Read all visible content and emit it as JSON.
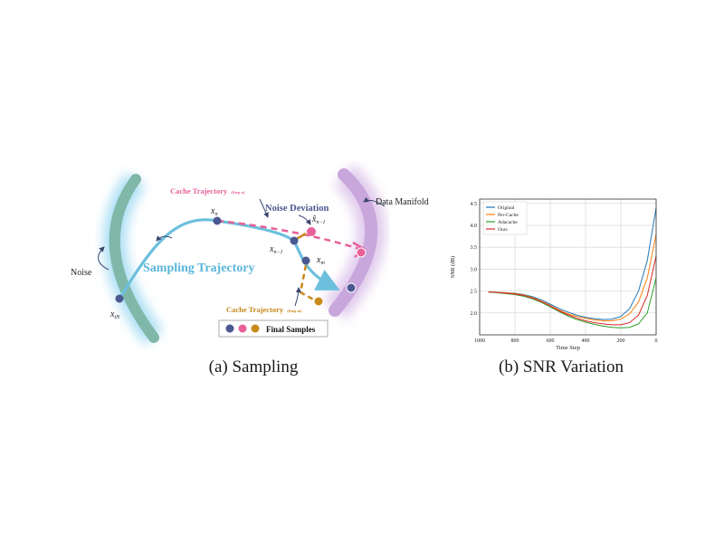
{
  "panel_a": {
    "caption": "(a) Sampling",
    "labels": {
      "noise": "Noise",
      "data_manifold": "Data Manifold",
      "sampling_trajectory": "Sampling Trajectory",
      "noise_deviation": "Noise Deviation",
      "cache_trajectory_top": "Cache Trajectory",
      "cache_trajectory_top_note": "(Step n)",
      "cache_trajectory_bottom": "Cache Trajectory",
      "cache_trajectory_bottom_note": "(Step m)",
      "final_samples": "Final Samples",
      "x_tN": "x",
      "x_tN_sub": "tN",
      "x_n": "x",
      "x_n_sub": "n",
      "x_n_minus_1": "x",
      "x_n_minus_1_sub": "n−1",
      "xhat_n_minus_1": "x̂",
      "xhat_n_minus_1_sub": "n−1",
      "x_m": "x",
      "x_m_sub": "m"
    },
    "colors": {
      "noise_band": "#7fb7a8",
      "noise_glow": "#9ad8f2",
      "manifold_band": "#c9a6dc",
      "sampling": "#6cc0de",
      "cache_top": "#e8609a",
      "cache_bottom": "#c98a1c",
      "point": "#4b5891",
      "deviation_text": "#4b5891",
      "sampling_text": "#5ab6d9"
    }
  },
  "panel_b": {
    "caption": "(b) SNR Variation",
    "chart_data": {
      "type": "line",
      "xlabel": "Time Step",
      "ylabel": "SNR (dB)",
      "xlim": [
        1000,
        0
      ],
      "ylim": [
        1.5,
        4.6
      ],
      "x_ticks": [
        "1000",
        "800",
        "600",
        "400",
        "200",
        "0"
      ],
      "y_ticks": [
        "2.0",
        "2.5",
        "3.0",
        "3.5",
        "4.0",
        "4.5"
      ],
      "grid": true,
      "legend_position": "top-left",
      "series": [
        {
          "name": "Original",
          "color": "#1f77b4",
          "points": [
            [
              950,
              2.48
            ],
            [
              900,
              2.47
            ],
            [
              850,
              2.46
            ],
            [
              800,
              2.45
            ],
            [
              750,
              2.42
            ],
            [
              700,
              2.37
            ],
            [
              650,
              2.3
            ],
            [
              600,
              2.2
            ],
            [
              550,
              2.1
            ],
            [
              500,
              2.02
            ],
            [
              450,
              1.95
            ],
            [
              400,
              1.9
            ],
            [
              350,
              1.87
            ],
            [
              300,
              1.85
            ],
            [
              250,
              1.86
            ],
            [
              200,
              1.92
            ],
            [
              150,
              2.1
            ],
            [
              100,
              2.5
            ],
            [
              50,
              3.2
            ],
            [
              0,
              4.4
            ]
          ]
        },
        {
          "name": "Per-Cache",
          "color": "#ff7f0e",
          "points": [
            [
              950,
              2.48
            ],
            [
              900,
              2.47
            ],
            [
              850,
              2.46
            ],
            [
              800,
              2.44
            ],
            [
              750,
              2.41
            ],
            [
              700,
              2.35
            ],
            [
              650,
              2.27
            ],
            [
              600,
              2.17
            ],
            [
              550,
              2.07
            ],
            [
              500,
              1.98
            ],
            [
              450,
              1.92
            ],
            [
              400,
              1.88
            ],
            [
              350,
              1.84
            ],
            [
              300,
              1.82
            ],
            [
              250,
              1.82
            ],
            [
              200,
              1.86
            ],
            [
              150,
              1.98
            ],
            [
              100,
              2.25
            ],
            [
              50,
              2.8
            ],
            [
              0,
              3.8
            ]
          ]
        },
        {
          "name": "Adacache",
          "color": "#2ca02c",
          "points": [
            [
              950,
              2.48
            ],
            [
              900,
              2.46
            ],
            [
              850,
              2.44
            ],
            [
              800,
              2.42
            ],
            [
              750,
              2.38
            ],
            [
              700,
              2.32
            ],
            [
              650,
              2.24
            ],
            [
              600,
              2.14
            ],
            [
              550,
              2.03
            ],
            [
              500,
              1.93
            ],
            [
              450,
              1.85
            ],
            [
              400,
              1.79
            ],
            [
              350,
              1.74
            ],
            [
              300,
              1.7
            ],
            [
              250,
              1.67
            ],
            [
              200,
              1.66
            ],
            [
              150,
              1.67
            ],
            [
              100,
              1.75
            ],
            [
              50,
              2.0
            ],
            [
              0,
              2.8
            ]
          ]
        },
        {
          "name": "Ours",
          "color": "#d62728",
          "points": [
            [
              950,
              2.48
            ],
            [
              900,
              2.47
            ],
            [
              850,
              2.45
            ],
            [
              800,
              2.43
            ],
            [
              750,
              2.4
            ],
            [
              700,
              2.34
            ],
            [
              650,
              2.26
            ],
            [
              600,
              2.16
            ],
            [
              550,
              2.05
            ],
            [
              500,
              1.96
            ],
            [
              450,
              1.88
            ],
            [
              400,
              1.82
            ],
            [
              350,
              1.78
            ],
            [
              300,
              1.75
            ],
            [
              250,
              1.73
            ],
            [
              200,
              1.73
            ],
            [
              150,
              1.78
            ],
            [
              100,
              1.95
            ],
            [
              50,
              2.4
            ],
            [
              0,
              3.3
            ]
          ]
        }
      ]
    }
  }
}
